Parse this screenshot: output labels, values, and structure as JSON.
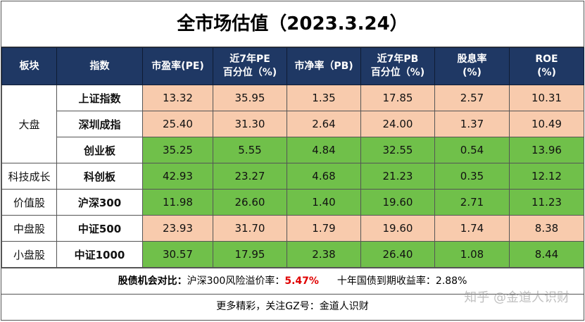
{
  "title": "全市场估值（2023.3.24）",
  "headers": {
    "h1": "板块",
    "h2": "指数",
    "h3": "市盈率(PE)",
    "h4a": "近7年PE",
    "h4b": "百分位（%)",
    "h5": "市净率（PB)",
    "h6a": "近7年PB",
    "h6b": "百分位（%)",
    "h7a": "股息率",
    "h7b": "(%)",
    "h8a": "ROE",
    "h8b": "(%)"
  },
  "sectors": {
    "dapan": "大盘",
    "keji": "科技成长",
    "jiazhi": "价值股",
    "zhongpan": "中盘股",
    "xiaopan": "小盘股"
  },
  "rows": [
    {
      "index": "上证指数",
      "pe": "13.32",
      "pe_pct": "35.95",
      "pb": "1.35",
      "pb_pct": "17.85",
      "div": "2.57",
      "roe": "10.31",
      "color": "#f8cbad"
    },
    {
      "index": "深圳成指",
      "pe": "25.40",
      "pe_pct": "31.30",
      "pb": "2.64",
      "pb_pct": "24.00",
      "div": "1.37",
      "roe": "10.49",
      "color": "#f8cbad"
    },
    {
      "index": "创业板",
      "pe": "35.25",
      "pe_pct": "5.55",
      "pb": "4.84",
      "pb_pct": "32.55",
      "div": "0.54",
      "roe": "13.96",
      "color": "#70c04a"
    },
    {
      "index": "科创板",
      "pe": "42.93",
      "pe_pct": "23.27",
      "pb": "4.68",
      "pb_pct": "21.23",
      "div": "0.35",
      "roe": "12.12",
      "color": "#70c04a"
    },
    {
      "index": "沪深300",
      "pe": "11.98",
      "pe_pct": "26.60",
      "pb": "1.40",
      "pb_pct": "19.60",
      "div": "2.71",
      "roe": "11.23",
      "color": "#70c04a"
    },
    {
      "index": "中证500",
      "pe": "23.93",
      "pe_pct": "31.70",
      "pb": "1.79",
      "pb_pct": "19.60",
      "div": "1.74",
      "roe": "8.38",
      "color": "#f8cbad"
    },
    {
      "index": "中证1000",
      "pe": "30.57",
      "pe_pct": "17.95",
      "pb": "2.38",
      "pb_pct": "26.40",
      "div": "1.08",
      "roe": "8.44",
      "color": "#70c04a"
    }
  ],
  "note": {
    "label": "股债机会对比：",
    "premium_label": "沪深300风险溢价率：",
    "premium_value": "5.47%",
    "bond_label": "十年国债到期收益率：",
    "bond_value": "2.88%"
  },
  "footer": "更多精彩，关注GZ号：金道人识财",
  "watermark": "知乎 @金道人识财"
}
